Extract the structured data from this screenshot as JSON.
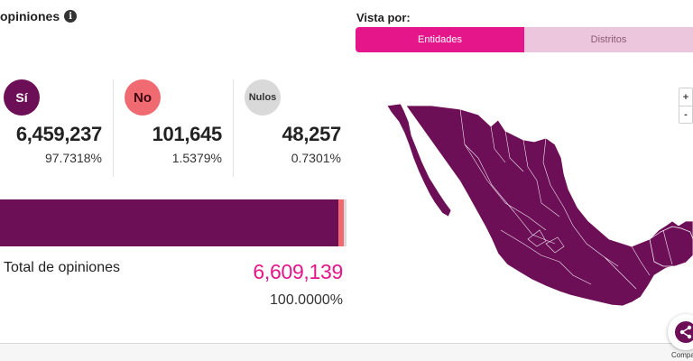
{
  "header": {
    "title": "opiniones",
    "info_icon": "info-icon",
    "info_glyph": "i"
  },
  "results": [
    {
      "key": "si",
      "label": "Sí",
      "count": "6,459,237",
      "percent": "97.7318%",
      "color": "#6d0f57"
    },
    {
      "key": "no",
      "label": "No",
      "count": "101,645",
      "percent": "1.5379%",
      "color": "#f06a72"
    },
    {
      "key": "nulos",
      "label": "Nulos",
      "count": "48,257",
      "percent": "0.7301%",
      "color": "#d9d9d9"
    }
  ],
  "distribution_bar": {
    "segments": [
      {
        "key": "si",
        "fraction": 0.977318,
        "color": "#6d0f57"
      },
      {
        "key": "no",
        "fraction": 0.015379,
        "color": "#f06a72"
      },
      {
        "key": "nulos",
        "fraction": 0.007301,
        "color": "#d9d9d9"
      }
    ]
  },
  "total": {
    "label": "Total de opiniones",
    "value": "6,609,139",
    "percent": "100.0000%",
    "color": "#e4168a"
  },
  "view": {
    "label": "Vista por:",
    "tabs": [
      {
        "label": "Entidades",
        "active": true
      },
      {
        "label": "Distritos",
        "active": false
      }
    ]
  },
  "map": {
    "fill_color": "#6d0f57",
    "border_color": "#ffffff"
  },
  "zoom": {
    "in": "+",
    "out": "-"
  },
  "share": {
    "label": "Compartir",
    "icon": "share-icon"
  }
}
